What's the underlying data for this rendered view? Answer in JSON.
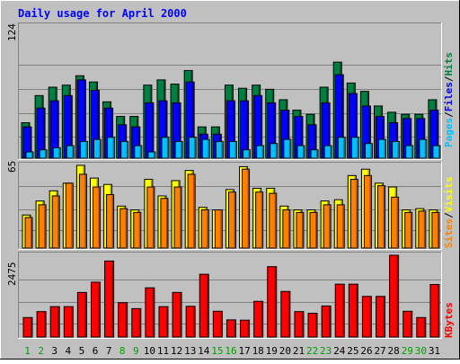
{
  "title": "Daily usage for April 2000",
  "colors": {
    "background": "#C0C0C0",
    "title_text": "#0000FF",
    "hits": "#008040",
    "files": "#0000FF",
    "pages": "#00C0FF",
    "visits": "#FFFF00",
    "sites": "#FF8000",
    "kbytes": "#FF0000",
    "weekend_day": "#00A000",
    "weekday": "#000000"
  },
  "chart_data": [
    {
      "type": "bar",
      "panel": "hits-files-pages",
      "ymax_label": "124",
      "ylim": [
        0,
        124
      ],
      "legend": {
        "pages": "Pages",
        "files": "Files",
        "hits": "Hits",
        "separator": "/"
      },
      "legend_position": "right",
      "grid": true,
      "categories": [
        "1",
        "2",
        "3",
        "4",
        "5",
        "6",
        "7",
        "8",
        "9",
        "10",
        "11",
        "12",
        "13",
        "14",
        "15",
        "16",
        "17",
        "18",
        "19",
        "20",
        "21",
        "22",
        "23",
        "24",
        "25",
        "26",
        "27",
        "28",
        "29",
        "30",
        "31"
      ],
      "series": [
        {
          "name": "Hits",
          "values": [
            34,
            60,
            68,
            70,
            79,
            73,
            54,
            40,
            40,
            70,
            75,
            71,
            84,
            30,
            30,
            70,
            67,
            70,
            66,
            56,
            46,
            42,
            68,
            92,
            72,
            64,
            50,
            44,
            42,
            42,
            56
          ]
        },
        {
          "name": "Files",
          "values": [
            30,
            48,
            55,
            60,
            75,
            65,
            48,
            32,
            30,
            53,
            55,
            53,
            73,
            23,
            23,
            55,
            55,
            60,
            53,
            46,
            40,
            32,
            53,
            80,
            62,
            50,
            40,
            34,
            38,
            38,
            46
          ]
        },
        {
          "name": "Pages",
          "values": [
            6,
            8,
            10,
            12,
            16,
            18,
            20,
            16,
            12,
            6,
            20,
            16,
            20,
            18,
            16,
            16,
            8,
            12,
            14,
            18,
            12,
            8,
            12,
            20,
            20,
            14,
            18,
            16,
            12,
            18,
            12
          ]
        }
      ]
    },
    {
      "type": "bar",
      "panel": "visits-sites",
      "ymax_label": "65",
      "ylim": [
        0,
        65
      ],
      "legend": {
        "sites": "Sites",
        "visits": "Visits",
        "separator": "/"
      },
      "legend_position": "right",
      "grid": true,
      "categories": [
        "1",
        "2",
        "3",
        "4",
        "5",
        "6",
        "7",
        "8",
        "9",
        "10",
        "11",
        "12",
        "13",
        "14",
        "15",
        "16",
        "17",
        "18",
        "19",
        "20",
        "21",
        "22",
        "23",
        "24",
        "25",
        "26",
        "27",
        "28",
        "29",
        "30",
        "31"
      ],
      "series": [
        {
          "name": "Visits",
          "values": [
            26,
            37,
            45,
            51,
            65,
            55,
            50,
            33,
            30,
            54,
            41,
            53,
            61,
            32,
            30,
            46,
            64,
            47,
            47,
            33,
            30,
            30,
            37,
            38,
            57,
            62,
            51,
            48,
            30,
            31,
            30
          ]
        },
        {
          "name": "Sites",
          "values": [
            24,
            34,
            41,
            51,
            58,
            48,
            42,
            31,
            28,
            48,
            39,
            48,
            58,
            30,
            30,
            44,
            62,
            44,
            43,
            30,
            28,
            28,
            34,
            34,
            54,
            57,
            49,
            40,
            28,
            29,
            28
          ]
        }
      ]
    },
    {
      "type": "bar",
      "panel": "kbytes",
      "ymax_label": "2475",
      "ylim": [
        0,
        2475
      ],
      "legend": {
        "kbytes": "KBytes"
      },
      "legend_position": "right",
      "grid": true,
      "categories": [
        "1",
        "2",
        "3",
        "4",
        "5",
        "6",
        "7",
        "8",
        "9",
        "10",
        "11",
        "12",
        "13",
        "14",
        "15",
        "16",
        "17",
        "18",
        "19",
        "20",
        "21",
        "22",
        "23",
        "24",
        "25",
        "26",
        "27",
        "28",
        "29",
        "30",
        "31"
      ],
      "series": [
        {
          "name": "KBytes",
          "values": [
            590,
            770,
            920,
            920,
            1350,
            1660,
            2300,
            1040,
            860,
            1490,
            920,
            1350,
            930,
            1900,
            780,
            520,
            510,
            1080,
            2130,
            1380,
            770,
            720,
            940,
            1600,
            1600,
            1230,
            1230,
            2475,
            780,
            590,
            1590
          ]
        }
      ]
    }
  ],
  "weekend_days": [
    1,
    2,
    8,
    9,
    15,
    16,
    22,
    23,
    29,
    30
  ]
}
